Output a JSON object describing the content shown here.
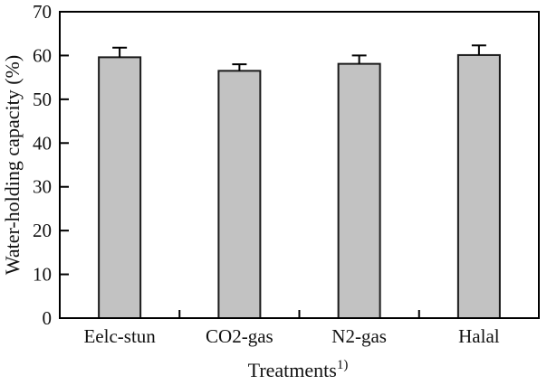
{
  "figure": {
    "background": "#ffffff"
  },
  "chart_data": {
    "type": "bar",
    "title": "",
    "categories": [
      "Eelc-stun",
      "CO2-gas",
      "N2-gas",
      "Halal"
    ],
    "values": [
      59.6,
      56.5,
      58.1,
      60.1
    ],
    "errors_up": [
      2.2,
      1.5,
      1.9,
      2.2
    ],
    "xlabel": "Treatments",
    "xlabel_superscript": "1)",
    "ylabel": "Water-holding capacity (%)",
    "ylim": [
      0,
      70
    ],
    "yticks": [
      0,
      10,
      20,
      30,
      40,
      50,
      60,
      70
    ],
    "grid": false,
    "legend_position": "none",
    "plot_border": "full-box",
    "bar_fill_color": "#c2c2c2",
    "bar_border_color": "#1a1a1a",
    "axis_color": "#000000",
    "text_color": "#111111"
  }
}
